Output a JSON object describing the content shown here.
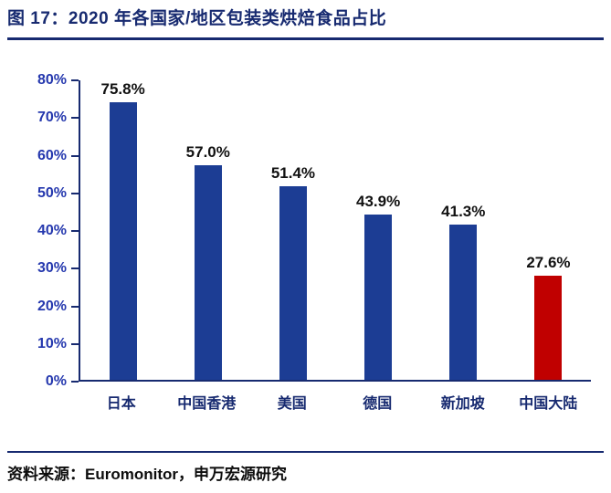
{
  "header": {
    "title": "图 17：2020 年各国家/地区包装类烘焙食品占比"
  },
  "footer": {
    "source": "资料来源：Euromonitor，申万宏源研究"
  },
  "colors": {
    "navy_accent": "#172a70",
    "bar_blue": "#1c3d94",
    "bar_red": "#c00000",
    "tick_blue": "#2538ae"
  },
  "chart_data": {
    "type": "bar",
    "title": "2020 年各国家/地区包装类烘焙食品占比",
    "categories": [
      "日本",
      "中国香港",
      "美国",
      "德国",
      "新加坡",
      "中国大陆"
    ],
    "values": [
      75.8,
      57.0,
      51.4,
      43.9,
      41.3,
      27.6
    ],
    "value_labels": [
      "75.8%",
      "57.0%",
      "51.4%",
      "43.9%",
      "41.3%",
      "27.6%"
    ],
    "bar_colors": [
      "#1c3d94",
      "#1c3d94",
      "#1c3d94",
      "#1c3d94",
      "#1c3d94",
      "#c00000"
    ],
    "xlabel": "",
    "ylabel": "",
    "ylim": [
      0,
      80
    ],
    "ytick_labels": [
      "80%",
      "70%",
      "60%",
      "50%",
      "40%",
      "30%",
      "20%",
      "10%",
      "0%"
    ],
    "grid": false,
    "legend": false
  }
}
